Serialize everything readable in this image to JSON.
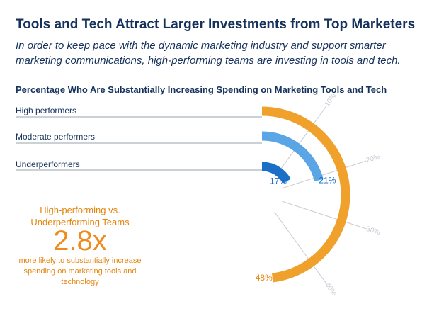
{
  "header": {
    "title": "Tools and Tech Attract Larger Investments from Top Marketers",
    "subtitle": "In order to keep pace with the dynamic marketing industry and support smarter marketing communications, high-performing teams are investing in tools and tech."
  },
  "callout": {
    "heading": "High-performing vs. Underperforming Teams",
    "big_value": "2.8x",
    "text": "more likely to substantially increase spending on marketing tools and technology"
  },
  "chart_data": {
    "type": "radial-bar",
    "title": "Percentage Who Are Substantially Increasing Spending on Marketing Tools and Tech",
    "categories": [
      "High performers",
      "Moderate performers",
      "Underperformers"
    ],
    "values": [
      48,
      21,
      17
    ],
    "value_labels": [
      "48%",
      "21%",
      "17%"
    ],
    "unit": "%",
    "axis_ticks": [
      10,
      20,
      30,
      40
    ],
    "axis_tick_labels": [
      "10%",
      "20%",
      "30%",
      "40%"
    ],
    "axis_range": [
      0,
      50
    ],
    "colors": {
      "High performers": "#f0a12c",
      "Moderate performers": "#5aa5e6",
      "Underperformers": "#1c6fc7",
      "text": "#16325c",
      "accent": "#e4850e",
      "grid": "#c8ccd3"
    }
  }
}
